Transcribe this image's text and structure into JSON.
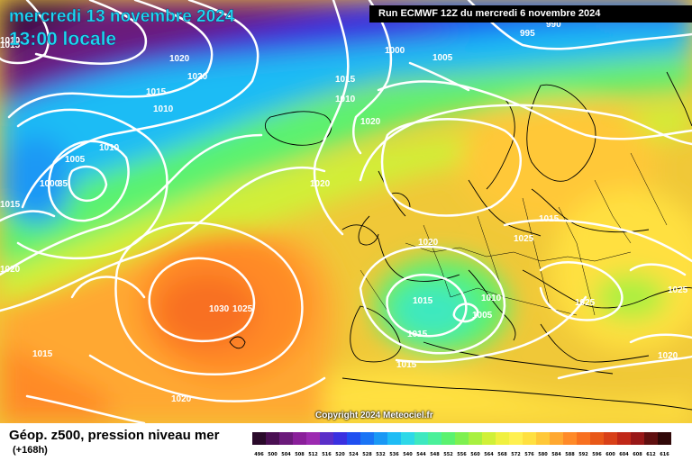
{
  "header": {
    "date": "mercredi 13 novembre 2024",
    "time": "13:00 locale",
    "run": "Run ECMWF 12Z du mercredi 6 novembre 2024"
  },
  "copyright": "Copyright 2024 Meteociel.fr",
  "footer": {
    "caption": "Géop. z500, pression niveau mer",
    "lead": "(+168h)"
  },
  "isobar_labels": [
    "1010",
    "1015",
    "995",
    "990",
    "1000",
    "1005",
    "1020",
    "1020",
    "1015",
    "1010",
    "1010",
    "1015",
    "1020",
    "1010",
    "1005",
    "1000",
    "35",
    "1015",
    "1020",
    "1020",
    "1030",
    "1025",
    "1015",
    "1025",
    "1015",
    "1010",
    "1005",
    "1015",
    "1025",
    "1020",
    "1025",
    "1015",
    "1020",
    "1020",
    "1015"
  ],
  "legend": {
    "values": [
      "496",
      "500",
      "504",
      "508",
      "512",
      "516",
      "520",
      "524",
      "528",
      "532",
      "536",
      "540",
      "544",
      "548",
      "552",
      "556",
      "560",
      "564",
      "568",
      "572",
      "576",
      "580",
      "584",
      "588",
      "592",
      "596",
      "600",
      "604",
      "608",
      "612",
      "616"
    ],
    "colors": [
      "#2a0a2a",
      "#4a0f52",
      "#6b1a7a",
      "#8a1f9a",
      "#9c2ab0",
      "#5a2ec8",
      "#3a30e0",
      "#1f4ff0",
      "#1a74f5",
      "#1a98f5",
      "#1fbcf5",
      "#2ed8e8",
      "#3ee8c0",
      "#4af09a",
      "#5af270",
      "#7ef050",
      "#a8f040",
      "#d0f038",
      "#f0f040",
      "#fff050",
      "#ffe040",
      "#ffc838",
      "#ffa830",
      "#ff8a28",
      "#f87020",
      "#e85818",
      "#d84018",
      "#c02818",
      "#981818",
      "#601010",
      "#300808"
    ]
  }
}
